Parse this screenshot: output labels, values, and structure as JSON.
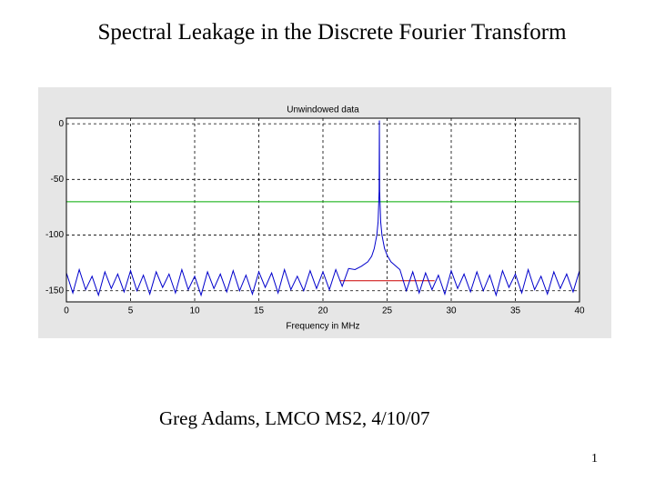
{
  "slide": {
    "title": "Spectral Leakage in the Discrete Fourier Transform",
    "author": "Greg Adams, LMCO MS2, 4/10/07",
    "page_number": "1"
  },
  "chart_data": {
    "type": "line",
    "title": "Unwindowed data",
    "x_label": "Frequency in MHz",
    "xlim": [
      0,
      40
    ],
    "xticks": [
      0,
      5,
      10,
      15,
      20,
      25,
      30,
      35,
      40
    ],
    "ylim": [
      -160,
      5
    ],
    "yticks": [
      -150,
      -100,
      -50,
      0
    ],
    "grid": true,
    "series": [
      {
        "color": "#0000cc",
        "x": [
          0,
          0.5,
          1,
          1.5,
          2,
          2.5,
          3,
          3.5,
          4,
          4.5,
          5,
          5.5,
          6,
          6.5,
          7,
          7.5,
          8,
          8.5,
          9,
          9.5,
          10,
          10.5,
          11,
          11.5,
          12,
          12.5,
          13,
          13.5,
          14,
          14.5,
          15,
          15.5,
          16,
          16.5,
          17,
          17.5,
          18,
          18.5,
          19,
          19.5,
          20,
          20.5,
          21,
          21.5,
          22,
          22.5,
          23,
          23.5,
          23.8,
          24,
          24.2,
          24.3,
          24.38,
          24.4,
          24.42,
          24.5,
          24.6,
          24.8,
          25,
          25.3,
          25.7,
          26,
          26.5,
          27,
          27.5,
          28,
          28.5,
          29,
          29.5,
          30,
          30.5,
          31,
          31.5,
          32,
          32.5,
          33,
          33.5,
          34,
          34.5,
          35,
          35.5,
          36,
          36.5,
          37,
          37.5,
          38,
          38.5,
          39,
          39.5,
          40
        ],
        "values": [
          -134,
          -152,
          -131,
          -149,
          -137,
          -154,
          -133,
          -148,
          -135,
          -151,
          -132,
          -150,
          -136,
          -153,
          -133,
          -147,
          -135,
          -152,
          -131,
          -149,
          -137,
          -154,
          -133,
          -148,
          -135,
          -151,
          -132,
          -150,
          -136,
          -153,
          -133,
          -147,
          -134,
          -152,
          -131,
          -149,
          -137,
          -150,
          -132,
          -148,
          -133,
          -149,
          -131,
          -146,
          -130,
          -131,
          -128,
          -124,
          -119,
          -112,
          -100,
          -88,
          -60,
          3,
          -60,
          -88,
          -100,
          -112,
          -118,
          -124,
          -128,
          -131,
          -150,
          -133,
          -152,
          -134,
          -149,
          -136,
          -153,
          -132,
          -148,
          -135,
          -151,
          -133,
          -150,
          -136,
          -154,
          -132,
          -147,
          -135,
          -152,
          -131,
          -149,
          -137,
          -153,
          -133,
          -148,
          -135,
          -151,
          -132
        ]
      }
    ],
    "hlines": [
      {
        "y": -70,
        "x": [
          0,
          40
        ],
        "color": "#00aa00"
      },
      {
        "y": -141,
        "x": [
          21.3,
          28.7
        ],
        "color": "#cc0000"
      }
    ]
  }
}
